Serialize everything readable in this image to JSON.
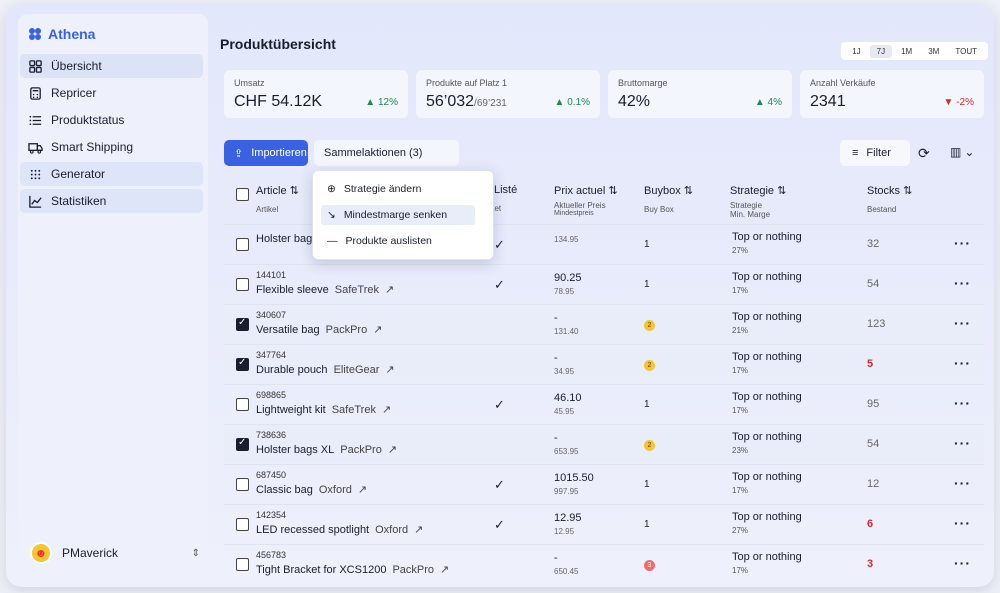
{
  "app": {
    "name": "Athena"
  },
  "sidebar": {
    "items": [
      {
        "label": "Übersicht",
        "icon": "grid-icon"
      },
      {
        "label": "Repricer",
        "icon": "calculator-icon"
      },
      {
        "label": "Produktstatus",
        "icon": "list-icon"
      },
      {
        "label": "Smart Shipping",
        "icon": "truck-icon"
      },
      {
        "label": "Generator",
        "icon": "grid-dots-icon"
      },
      {
        "label": "Statistiken",
        "icon": "chart-line-icon"
      }
    ],
    "user": {
      "name": "PMaverick"
    }
  },
  "header": {
    "title": "Produktübersicht",
    "ranges": [
      "1J",
      "7J",
      "1M",
      "3M",
      "TOUT"
    ],
    "active_range": "7J"
  },
  "kpis": [
    {
      "label": "Umsatz",
      "value": "CHF 54.12K",
      "sub": "",
      "delta": "12%",
      "dir": "up"
    },
    {
      "label": "Produkte auf Platz 1",
      "value": "56’032",
      "sub": "/69’231",
      "delta": "0.1%",
      "dir": "up"
    },
    {
      "label": "Bruttomarge",
      "value": "42%",
      "sub": "",
      "delta": "4%",
      "dir": "up"
    },
    {
      "label": "Anzahl Verkäufe",
      "value": "2341",
      "sub": "",
      "delta": "-2%",
      "dir": "down"
    }
  ],
  "toolbar": {
    "import_label": "Importieren",
    "bulk_label": "Sammelaktionen (3)",
    "filter_label": "Filter"
  },
  "dropdown": {
    "items": [
      "Strategie ändern",
      "Mindestmarge senken",
      "Produkte auslisten"
    ]
  },
  "table": {
    "headers": {
      "article": "Article",
      "article_sub": "Artikel",
      "listed": "Listé",
      "listed_sub": "Gelistet",
      "price": "Prix actuel",
      "price_sub": "Aktueller Preis",
      "price_sub2": "Mindestpreis",
      "buybox": "Buybox",
      "buybox_sub": "Buy Box",
      "strategy": "Strategie",
      "strategy_sub": "Strategie",
      "strategy_sub2": "Min. Marge",
      "stocks": "Stocks",
      "stocks_sub": "Bestand"
    },
    "rows": [
      {
        "id": "",
        "name": "Holster bags",
        "brand": "",
        "checked": false,
        "listed": true,
        "price": "",
        "min": "134.95",
        "buybox": "1",
        "bb_badge": "",
        "strategy": "Top or nothing",
        "margin": "27%",
        "stock": "32",
        "low": false
      },
      {
        "id": "144101",
        "name": "Flexible sleeve",
        "brand": "SafeTrek",
        "checked": false,
        "listed": true,
        "price": "90.25",
        "min": "78.95",
        "buybox": "1",
        "bb_badge": "",
        "strategy": "Top or nothing",
        "margin": "17%",
        "stock": "54",
        "low": false
      },
      {
        "id": "340607",
        "name": "Versatile bag",
        "brand": "PackPro",
        "checked": true,
        "listed": false,
        "price": "-",
        "min": "131.40",
        "buybox": "2",
        "bb_badge": "yellow",
        "strategy": "Top or nothing",
        "margin": "21%",
        "stock": "123",
        "low": false
      },
      {
        "id": "347764",
        "name": "Durable pouch",
        "brand": "EliteGear",
        "checked": true,
        "listed": false,
        "price": "-",
        "min": "34.95",
        "buybox": "2",
        "bb_badge": "yellow",
        "strategy": "Top or nothing",
        "margin": "17%",
        "stock": "5",
        "low": true
      },
      {
        "id": "698865",
        "name": "Lightweight kit",
        "brand": "SafeTrek",
        "checked": false,
        "listed": true,
        "price": "46.10",
        "min": "45.95",
        "buybox": "1",
        "bb_badge": "",
        "strategy": "Top or nothing",
        "margin": "17%",
        "stock": "95",
        "low": false
      },
      {
        "id": "738636",
        "name": "Holster bags XL",
        "brand": "PackPro",
        "checked": true,
        "listed": false,
        "price": "-",
        "min": "653.95",
        "buybox": "2",
        "bb_badge": "yellow",
        "strategy": "Top or nothing",
        "margin": "23%",
        "stock": "54",
        "low": false
      },
      {
        "id": "687450",
        "name": "Classic bag",
        "brand": "Oxford",
        "checked": false,
        "listed": true,
        "price": "1015.50",
        "min": "997.95",
        "buybox": "1",
        "bb_badge": "",
        "strategy": "Top or nothing",
        "margin": "17%",
        "stock": "12",
        "low": false
      },
      {
        "id": "142354",
        "name": "LED recessed spotlight",
        "brand": "Oxford",
        "checked": false,
        "listed": true,
        "price": "12.95",
        "min": "12.95",
        "buybox": "1",
        "bb_badge": "",
        "strategy": "Top or nothing",
        "margin": "27%",
        "stock": "6",
        "low": true
      },
      {
        "id": "456783",
        "name": "Tight Bracket for XCS1200",
        "brand": "PackPro",
        "checked": false,
        "listed": false,
        "price": "-",
        "min": "650.45",
        "buybox": "3",
        "bb_badge": "red",
        "strategy": "Top or nothing",
        "margin": "17%",
        "stock": "3",
        "low": true
      }
    ]
  }
}
